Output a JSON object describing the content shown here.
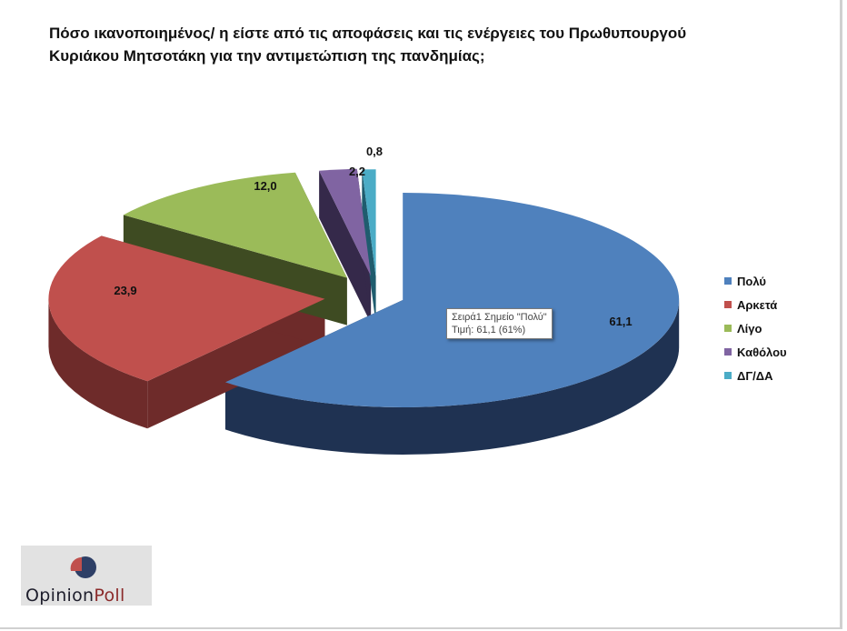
{
  "title": "Πόσο ικανοποιημένος/ η είστε από τις αποφάσεις και τις ενέργειες του Πρωθυπουργού\nΚυριάκου Μητσοτάκη  για την αντιμετώπιση της πανδημίας;",
  "chart_data": {
    "type": "pie",
    "title": "Πόσο ικανοποιημένος/ η είστε από τις αποφάσεις και τις ενέργειες του Πρωθυπουργού Κυριάκου Μητσοτάκη  για την αντιμετώπιση της πανδημίας;",
    "style": "3d-exploded",
    "categories": [
      "Πολύ",
      "Αρκετά",
      "Λίγο",
      "Καθόλου",
      "ΔΓ/ΔΑ"
    ],
    "values": [
      61.1,
      23.9,
      12.0,
      2.2,
      0.8
    ],
    "labels": [
      "61,1",
      "23,9",
      "12,0",
      "2,2",
      "0,8"
    ],
    "colors": [
      "#4f81bd",
      "#c0504d",
      "#9bbb59",
      "#8064a2",
      "#4bacc6"
    ],
    "side_colors": [
      "#1f3252",
      "#6e2b2a",
      "#3e4b22",
      "#35294a",
      "#1f5c6e"
    ],
    "legend_position": "right"
  },
  "tooltip": {
    "line1": "Σειρά1 Σημείο \"Πολύ\"",
    "line2": "Τιμή: 61,1 (61%)"
  },
  "logo": {
    "word1": "Opinion",
    "word2": "Poll"
  }
}
